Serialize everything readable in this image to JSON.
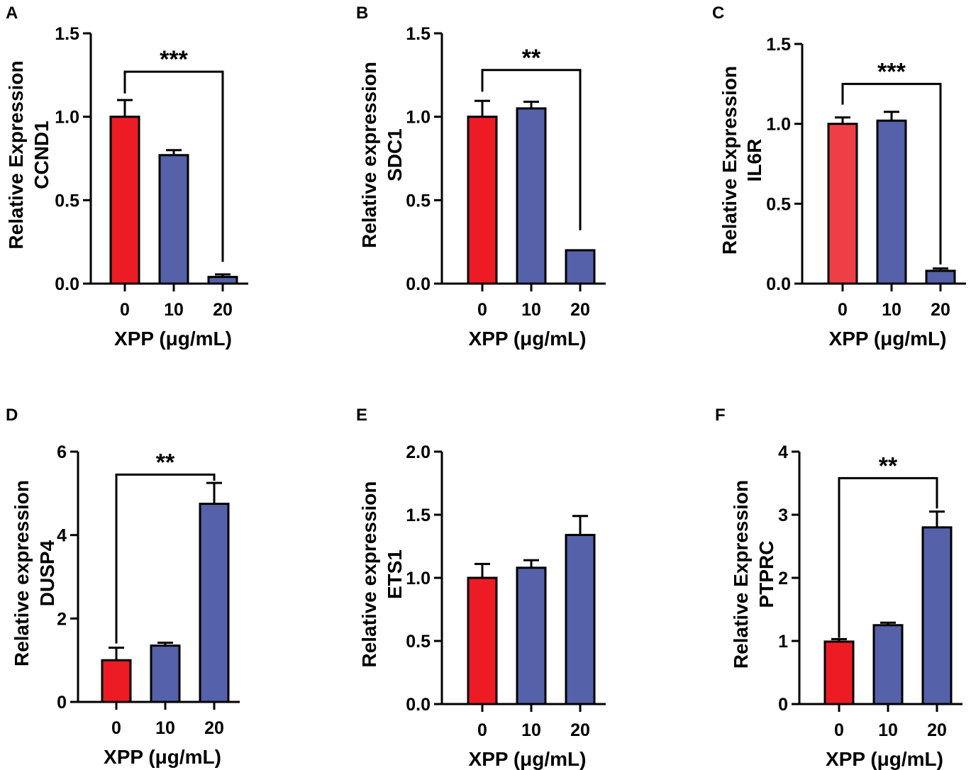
{
  "chart_data": [
    {
      "panel": "A",
      "type": "bar",
      "categories": [
        "0",
        "10",
        "20"
      ],
      "values": [
        1.0,
        0.77,
        0.04
      ],
      "errors": [
        0.1,
        0.03,
        0.015
      ],
      "bar_colors": [
        "#ed1c24",
        "#5561a9",
        "#5561a9"
      ],
      "ylabel": "Relative Expression\nCCND1",
      "xlabel": "XPP (μg/mL)",
      "ylim": [
        0,
        1.5
      ],
      "yticks": [
        "0.0",
        "0.5",
        "1.0",
        "1.5"
      ],
      "significance": {
        "from": 0,
        "to": 2,
        "label": "***",
        "y": 1.27,
        "left_drop": 1.14,
        "right_drop": 0.13
      }
    },
    {
      "panel": "B",
      "type": "bar",
      "categories": [
        "0",
        "10",
        "20"
      ],
      "values": [
        1.0,
        1.05,
        0.2
      ],
      "errors": [
        0.095,
        0.04,
        0.0
      ],
      "bar_colors": [
        "#ed1c24",
        "#5561a9",
        "#5561a9"
      ],
      "ylabel": "Relative expression\nSDC1",
      "xlabel": "XPP (μg/mL)",
      "ylim": [
        0,
        1.5
      ],
      "yticks": [
        "0.0",
        "0.5",
        "1.0",
        "1.5"
      ],
      "significance": {
        "from": 0,
        "to": 2,
        "label": "**",
        "y": 1.28,
        "left_drop": 1.15,
        "right_drop": 0.32
      }
    },
    {
      "panel": "C",
      "type": "bar",
      "categories": [
        "0",
        "10",
        "20"
      ],
      "values": [
        1.0,
        1.02,
        0.08
      ],
      "errors": [
        0.04,
        0.055,
        0.015
      ],
      "bar_colors": [
        "#ef3f46",
        "#5561a9",
        "#5561a9"
      ],
      "ylabel": "Relative Expression\nIL6R",
      "xlabel": "XPP (μg/mL)",
      "ylim": [
        0,
        1.5
      ],
      "yticks": [
        "0.0",
        "0.5",
        "1.0",
        "1.5"
      ],
      "significance": {
        "from": 0,
        "to": 2,
        "label": "***",
        "y": 1.25,
        "left_drop": 1.12,
        "right_drop": 0.12
      }
    },
    {
      "panel": "D",
      "type": "bar",
      "categories": [
        "0",
        "10",
        "20"
      ],
      "values": [
        1.0,
        1.35,
        4.75
      ],
      "errors": [
        0.3,
        0.07,
        0.5
      ],
      "bar_colors": [
        "#ed1c24",
        "#5561a9",
        "#5561a9"
      ],
      "ylabel": "Relative expression\nDUSP4",
      "xlabel": "XPP (μg/mL)",
      "ylim": [
        0,
        6
      ],
      "yticks": [
        "0",
        "2",
        "4",
        "6"
      ],
      "significance": {
        "from": 0,
        "to": 2,
        "label": "**",
        "y": 5.45,
        "left_drop": 1.4,
        "right_drop": 5.3
      }
    },
    {
      "panel": "E",
      "type": "bar",
      "categories": [
        "0",
        "10",
        "20"
      ],
      "values": [
        1.0,
        1.08,
        1.34
      ],
      "errors": [
        0.11,
        0.06,
        0.15
      ],
      "bar_colors": [
        "#ed1c24",
        "#5561a9",
        "#5561a9"
      ],
      "ylabel": "Relative expression\nETS1",
      "xlabel": "XPP (μg/mL)",
      "ylim": [
        0,
        2.0
      ],
      "yticks": [
        "0.0",
        "0.5",
        "1.0",
        "1.5",
        "2.0"
      ]
    },
    {
      "panel": "F",
      "type": "bar",
      "categories": [
        "0",
        "10",
        "20"
      ],
      "values": [
        0.99,
        1.25,
        2.8
      ],
      "errors": [
        0.04,
        0.04,
        0.25
      ],
      "bar_colors": [
        "#ed1c24",
        "#5561a9",
        "#5561a9"
      ],
      "ylabel": "Relative Expression\nPTPRC",
      "xlabel": "XPP (μg/mL)",
      "ylim": [
        0,
        4
      ],
      "yticks": [
        "0",
        "1",
        "2",
        "3",
        "4"
      ],
      "significance": {
        "from": 0,
        "to": 2,
        "label": "**",
        "y": 3.58,
        "left_drop": 1.05,
        "right_drop": 3.1
      }
    }
  ]
}
